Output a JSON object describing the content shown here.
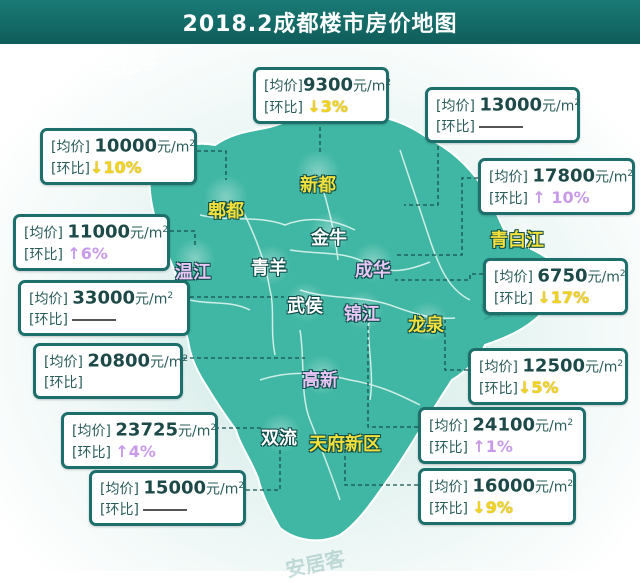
{
  "title": "2018.2成都楼市房价地图",
  "labels": {
    "avg": "[均价]",
    "change": "[环比]",
    "unit": "元/m",
    "unit_sup": "2"
  },
  "watermark": "安居客",
  "colors": {
    "header": "#12625f",
    "map_fill": "#3fb8a5",
    "card_border": "#1d6f6c",
    "down_arrow": "#f3d41d",
    "up_arrow": "#c89ae8"
  },
  "cards": [
    {
      "id": "xindu",
      "price": "9300",
      "change": "↓3%",
      "trend": "down"
    },
    {
      "id": "longquan-north",
      "price": "13000",
      "change": "",
      "trend": "flat"
    },
    {
      "id": "pixian",
      "price": "10000",
      "change": "↓10%",
      "trend": "down"
    },
    {
      "id": "qingbaijiang",
      "price": "17800",
      "change": "↑ 10%",
      "trend": "up"
    },
    {
      "id": "wenjiang",
      "price": "11000",
      "change": "↑6%",
      "trend": "up"
    },
    {
      "id": "longquan",
      "price": "6750",
      "change": "↓17%",
      "trend": "down"
    },
    {
      "id": "qingyang",
      "price": "33000",
      "change": "",
      "trend": "flat"
    },
    {
      "id": "wuhou",
      "price": "20800",
      "change": "",
      "trend": "flat"
    },
    {
      "id": "chenghua",
      "price": "12500",
      "change": "↓5%",
      "trend": "down"
    },
    {
      "id": "shuangliu",
      "price": "23725",
      "change": "↑4%",
      "trend": "up"
    },
    {
      "id": "jinjiang",
      "price": "24100",
      "change": "↑1%",
      "trend": "up"
    },
    {
      "id": "gaoxin",
      "price": "15000",
      "change": "",
      "trend": "flat"
    },
    {
      "id": "tianfu",
      "price": "16000",
      "change": "↓9%",
      "trend": "down"
    }
  ],
  "districts": {
    "pixian": "郫都",
    "xindu": "新都",
    "jinniu": "金牛",
    "qingbaijiang": "青白江",
    "wenjiang": "温江",
    "qingyang": "青羊",
    "chenghua": "成华",
    "wuhou": "武侯",
    "jinjiang": "锦江",
    "longquan": "龙泉",
    "gaoxin": "高新",
    "shuangliu": "双流",
    "tianfu": "天府新区"
  }
}
